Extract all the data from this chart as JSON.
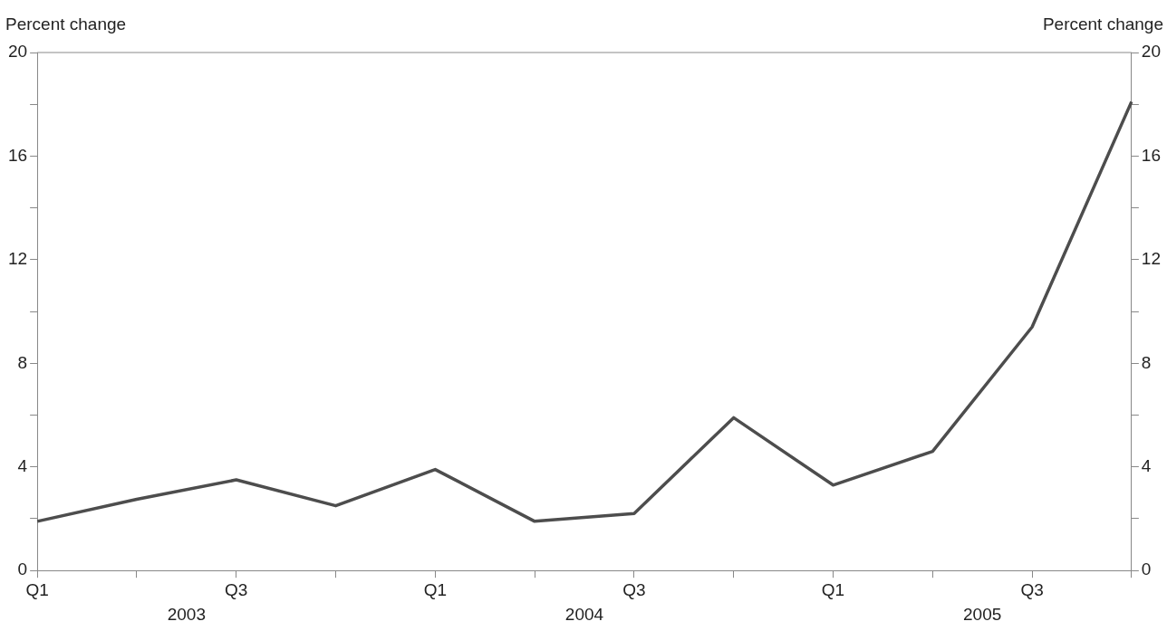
{
  "chart_data": {
    "type": "line",
    "ylabel": "Percent change",
    "y2label": "Percent change",
    "categories": [
      "Q1",
      null,
      "Q3",
      null,
      "Q1",
      null,
      "Q3",
      null,
      "Q1",
      null,
      "Q3",
      null
    ],
    "series": [
      {
        "color": "#4d4d4d",
        "values": [
          1.9,
          2.75,
          3.5,
          2.5,
          3.9,
          1.9,
          2.2,
          5.9,
          3.3,
          4.6,
          9.4,
          18.1
        ]
      }
    ],
    "ylim": [
      0,
      20
    ],
    "yticks": [
      0,
      {
        "value": 2,
        "label": null
      },
      4,
      {
        "value": 6,
        "label": null
      },
      8,
      {
        "value": 10,
        "label": null
      },
      12,
      {
        "value": 14,
        "label": null
      },
      16,
      {
        "value": 18,
        "label": null
      },
      20
    ],
    "y2lim": [
      0,
      20
    ],
    "y2ticks": [
      0,
      {
        "value": 2,
        "label": null
      },
      4,
      {
        "value": 6,
        "label": null
      },
      8,
      {
        "value": 10,
        "label": null
      },
      12,
      {
        "value": 14,
        "label": null
      },
      16,
      {
        "value": 18,
        "label": null
      },
      20
    ],
    "annotations": [
      "2003",
      "2004",
      "2005"
    ],
    "grid": false,
    "legend": false,
    "marker": "none",
    "line_style": "solid"
  }
}
